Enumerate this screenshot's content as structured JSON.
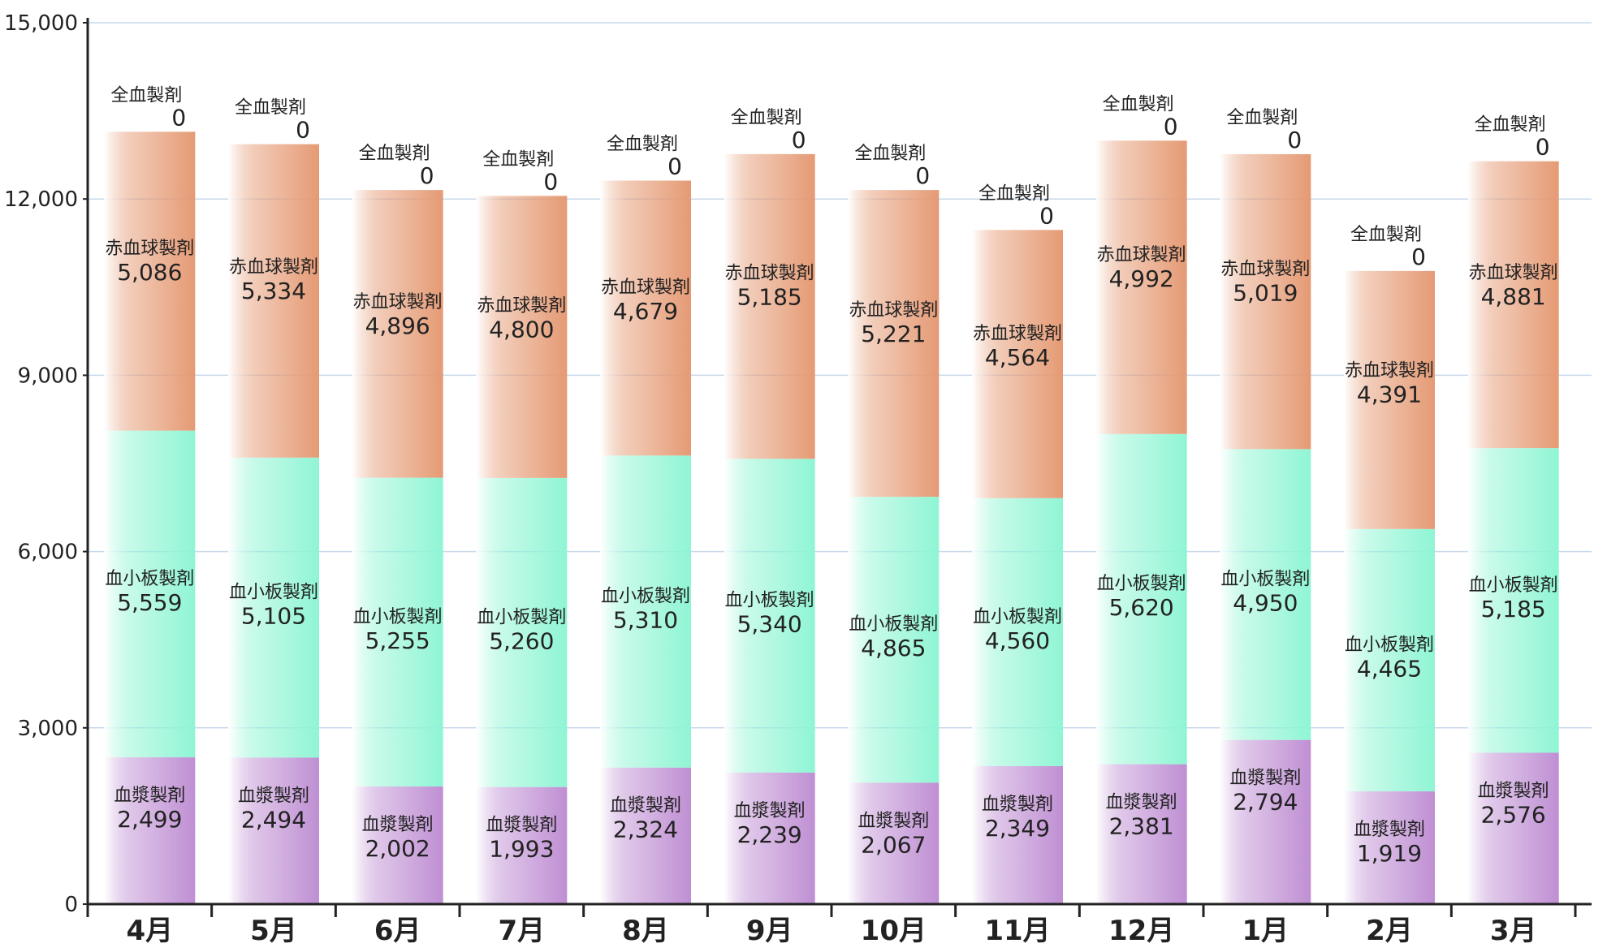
{
  "colors": {
    "plasma": "#bf8fd3",
    "platelet": "#8ff5d4",
    "red_cell": "#e59a74",
    "axis": "#222222",
    "grid": "#c8d8ec"
  },
  "chart_data": {
    "type": "bar",
    "stacked": true,
    "title": "",
    "xlabel": "",
    "ylabel": "",
    "ylim": [
      0,
      15000
    ],
    "yticks": [
      "0",
      "3,000",
      "6,000",
      "9,000",
      "12,000",
      "15,000"
    ],
    "ytick_values": [
      0,
      3000,
      6000,
      9000,
      12000,
      15000
    ],
    "grid": true,
    "legend": "none",
    "categories": [
      "4月",
      "5月",
      "6月",
      "7月",
      "8月",
      "9月",
      "10月",
      "11月",
      "12月",
      "1月",
      "2月",
      "3月"
    ],
    "series": [
      {
        "key": "plasma",
        "name": "血漿製剤",
        "values": [
          2499,
          2494,
          2002,
          1993,
          2324,
          2239,
          2067,
          2349,
          2381,
          2794,
          1919,
          2576
        ],
        "labels": [
          "2,499",
          "2,494",
          "2,002",
          "1,993",
          "2,324",
          "2,239",
          "2,067",
          "2,349",
          "2,381",
          "2,794",
          "1,919",
          "2,576"
        ]
      },
      {
        "key": "platelet",
        "name": "血小板製剤",
        "values": [
          5559,
          5105,
          5255,
          5260,
          5310,
          5340,
          4865,
          4560,
          5620,
          4950,
          4465,
          5185
        ],
        "labels": [
          "5,559",
          "5,105",
          "5,255",
          "5,260",
          "5,310",
          "5,340",
          "4,865",
          "4,560",
          "5,620",
          "4,950",
          "4,465",
          "5,185"
        ]
      },
      {
        "key": "red_cell",
        "name": "赤血球製剤",
        "values": [
          5086,
          5334,
          4896,
          4800,
          4679,
          5185,
          5221,
          4564,
          4992,
          5019,
          4391,
          4881
        ],
        "labels": [
          "5,086",
          "5,334",
          "4,896",
          "4,800",
          "4,679",
          "5,185",
          "5,221",
          "4,564",
          "4,992",
          "5,019",
          "4,391",
          "4,881"
        ]
      },
      {
        "key": "whole_blood",
        "name": "全血製剤",
        "values": [
          0,
          0,
          0,
          0,
          0,
          0,
          0,
          0,
          0,
          0,
          0,
          0
        ],
        "labels": [
          "0",
          "0",
          "0",
          "0",
          "0",
          "0",
          "0",
          "0",
          "0",
          "0",
          "0",
          "0"
        ]
      }
    ]
  }
}
